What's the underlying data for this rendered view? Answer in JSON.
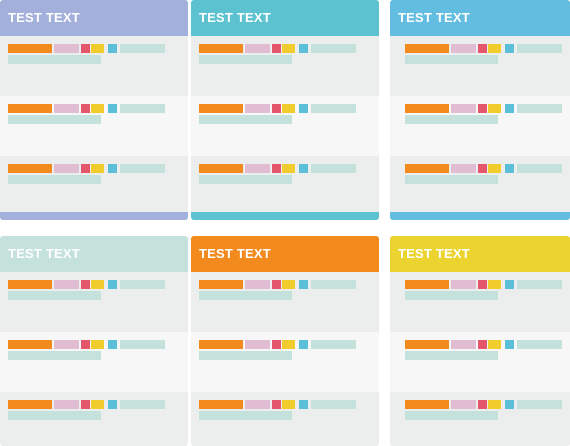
{
  "cards": [
    {
      "title": "TEST TEXT",
      "color": "#a3b0db",
      "position": "top-left"
    },
    {
      "title": "TEST TEXT",
      "color": "#5cc2cf",
      "position": "top-middle"
    },
    {
      "title": "TEST TEXT",
      "color": "#62bde0",
      "position": "top-right"
    },
    {
      "title": "TEST TEXT",
      "color": "#c4e1dc",
      "position": "bottom-left"
    },
    {
      "title": "TEST TEXT",
      "color": "#f28a1e",
      "position": "bottom-middle"
    },
    {
      "title": "TEST TEXT",
      "color": "#ecd430",
      "position": "bottom-right"
    }
  ],
  "bar_colors": {
    "orange": "#f28a1e",
    "pink": "#e0bdd2",
    "red": "#e3566c",
    "yellow": "#f0cd2c",
    "blue": "#5bbfda",
    "teal": "#c4e1dc"
  }
}
